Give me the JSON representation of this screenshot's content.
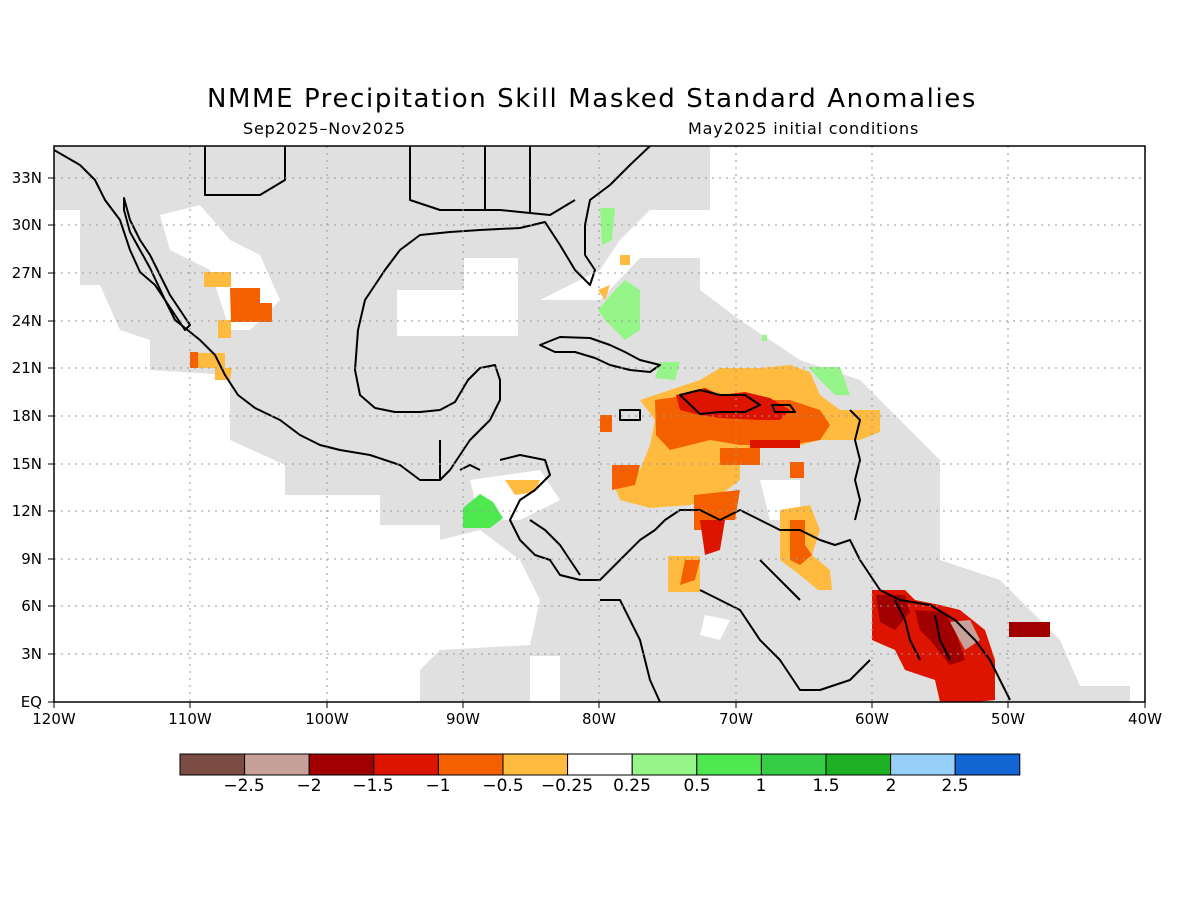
{
  "title": "NMME Precipitation Skill Masked Standard Anomalies",
  "subtitle_left": "Sep2025–Nov2025",
  "subtitle_right": "May2025 initial conditions",
  "lat_labels": [
    "33N",
    "30N",
    "27N",
    "24N",
    "21N",
    "18N",
    "15N",
    "12N",
    "9N",
    "6N",
    "3N",
    "EQ"
  ],
  "lon_labels": [
    "120W",
    "110W",
    "100W",
    "90W",
    "80W",
    "70W",
    "60W",
    "50W",
    "40W"
  ],
  "map_extent": {
    "lon_min": -120,
    "lon_max": -40,
    "lat_min": 0,
    "lat_max": 35
  },
  "colorbar": {
    "colors": [
      "#7a4c44",
      "#c8a09a",
      "#a00000",
      "#dd1500",
      "#f46000",
      "#ffbb40",
      "#ffffff",
      "#96f588",
      "#50e850",
      "#36cc46",
      "#1db022",
      "#96d0f8",
      "#1465d4"
    ],
    "labels": [
      "−2.5",
      "−2",
      "−1.5",
      "−1",
      "−0.5",
      "−0.25",
      "0.25",
      "0.5",
      "1",
      "1.5",
      "2",
      "2.5"
    ]
  },
  "mask_color": "#e0e0e0"
}
